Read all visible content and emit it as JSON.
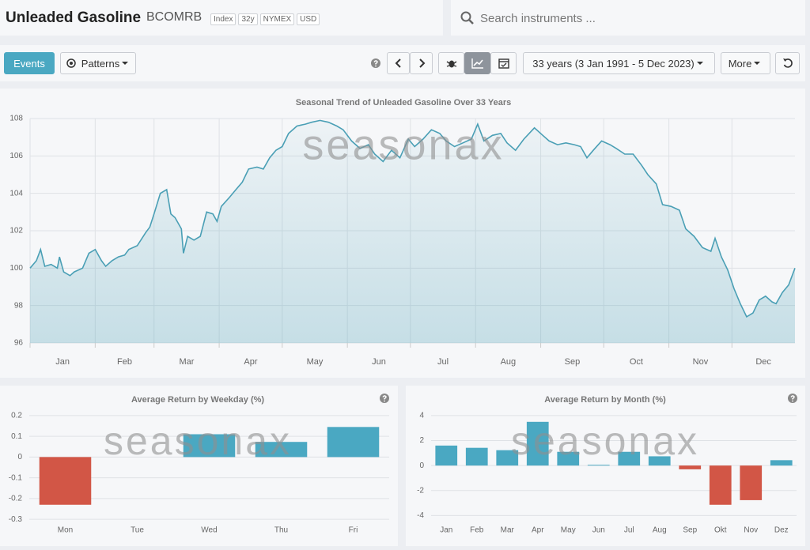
{
  "header": {
    "title": "Unleaded Gasoline",
    "ticker": "BCOMRB",
    "tags": [
      "Index",
      "32y",
      "NYMEX",
      "USD"
    ]
  },
  "search": {
    "placeholder": "Search instruments ..."
  },
  "toolbar": {
    "events": "Events",
    "patterns": "Patterns",
    "period": "33 years (3 Jan 1991 - 5 Dec 2023)",
    "more": "More"
  },
  "chart_data": [
    {
      "type": "line",
      "title": "Seasonal Trend of Unleaded Gasoline Over 33 Years",
      "watermark": "seasonax",
      "color": "#4a9fb5",
      "x": [
        1,
        4,
        6,
        8,
        11,
        14,
        15,
        17,
        20,
        22,
        26,
        29,
        32,
        35,
        37,
        40,
        43,
        46,
        48,
        52,
        56,
        58,
        60,
        63,
        66,
        68,
        70,
        73,
        74,
        76,
        79,
        82,
        85,
        88,
        90,
        92,
        96,
        99,
        102,
        105,
        109,
        112,
        115,
        118,
        121,
        124,
        128,
        132,
        135,
        139,
        143,
        147,
        150,
        154,
        158,
        162,
        165,
        169,
        173,
        177,
        181,
        184,
        188,
        192,
        196,
        199,
        203,
        207,
        211,
        214,
        217,
        221,
        225,
        228,
        232,
        236,
        241,
        245,
        248,
        252,
        256,
        260,
        263,
        266,
        269,
        273,
        277,
        280,
        284,
        288,
        292,
        295,
        299,
        302,
        306,
        310,
        313,
        317,
        321,
        325,
        327,
        330,
        333,
        336,
        339,
        342,
        345,
        348,
        351,
        354,
        356,
        359,
        362,
        365
      ],
      "values": [
        100.0,
        100.4,
        101.0,
        100.1,
        100.2,
        100.0,
        100.6,
        99.8,
        99.6,
        99.8,
        100.0,
        100.8,
        101.0,
        100.4,
        100.1,
        100.4,
        100.6,
        100.7,
        101.0,
        101.2,
        101.9,
        102.2,
        102.9,
        104.0,
        104.2,
        102.9,
        102.7,
        102.1,
        100.8,
        101.7,
        101.5,
        101.7,
        103.0,
        102.9,
        102.5,
        103.3,
        103.8,
        104.2,
        104.6,
        105.3,
        105.4,
        105.3,
        105.9,
        106.3,
        106.5,
        107.2,
        107.6,
        107.7,
        107.8,
        107.9,
        107.8,
        107.6,
        107.4,
        106.8,
        106.4,
        106.6,
        106.1,
        105.7,
        106.3,
        105.9,
        106.9,
        106.5,
        106.9,
        107.4,
        107.2,
        106.8,
        106.5,
        106.7,
        106.9,
        107.7,
        106.8,
        107.1,
        107.2,
        106.7,
        106.3,
        106.9,
        107.5,
        107.1,
        106.8,
        106.6,
        106.7,
        106.6,
        106.5,
        105.9,
        106.3,
        106.8,
        106.6,
        106.4,
        106.1,
        106.1,
        105.5,
        105.0,
        104.5,
        103.4,
        103.3,
        103.1,
        102.1,
        101.7,
        101.1,
        100.9,
        101.6,
        100.6,
        99.9,
        98.9,
        98.1,
        97.4,
        97.6,
        98.3,
        98.5,
        98.2,
        98.1,
        98.7,
        99.1,
        100.0
      ],
      "xlim": [
        1,
        365
      ],
      "xticks": [
        {
          "value": 1,
          "label": "Jan"
        },
        {
          "value": 32,
          "label": "Feb"
        },
        {
          "value": 60,
          "label": "Mar"
        },
        {
          "value": 91,
          "label": "Apr"
        },
        {
          "value": 121,
          "label": "May"
        },
        {
          "value": 152,
          "label": "Jun"
        },
        {
          "value": 182,
          "label": "Jul"
        },
        {
          "value": 213,
          "label": "Aug"
        },
        {
          "value": 244,
          "label": "Sep"
        },
        {
          "value": 274,
          "label": "Oct"
        },
        {
          "value": 305,
          "label": "Nov"
        },
        {
          "value": 335,
          "label": "Dec"
        }
      ],
      "ylim": [
        96,
        108
      ],
      "yticks": [
        96,
        98,
        100,
        102,
        104,
        106,
        108
      ],
      "grid": true
    },
    {
      "type": "bar",
      "title": "Average Return by Weekday (%)",
      "watermark": "seasonax",
      "categories": [
        "Mon",
        "Tue",
        "Wed",
        "Thu",
        "Fri"
      ],
      "values": [
        -0.23,
        0,
        0.11,
        0.073,
        0.145
      ],
      "positive_color": "#4aa8c2",
      "negative_color": "#d25646",
      "ylim": [
        -0.33,
        0.23
      ],
      "yticks": [
        0.2,
        0.1,
        0,
        -0.1,
        -0.2,
        -0.3
      ],
      "grid": true
    },
    {
      "type": "bar",
      "title": "Average Return by Month (%)",
      "watermark": "seasonax",
      "categories": [
        "Jan",
        "Feb",
        "Mar",
        "Apr",
        "May",
        "Jun",
        "Jul",
        "Aug",
        "Sep",
        "Okt",
        "Nov",
        "Dez"
      ],
      "values": [
        1.6,
        1.42,
        1.23,
        3.5,
        1.1,
        0.06,
        1.1,
        0.74,
        -0.3,
        -3.14,
        -2.77,
        0.43
      ],
      "positive_color": "#4aa8c2",
      "negative_color": "#d25646",
      "ylim": [
        -4.8,
        4.5
      ],
      "yticks": [
        4,
        2,
        0,
        -2,
        -4
      ],
      "grid": true
    }
  ]
}
